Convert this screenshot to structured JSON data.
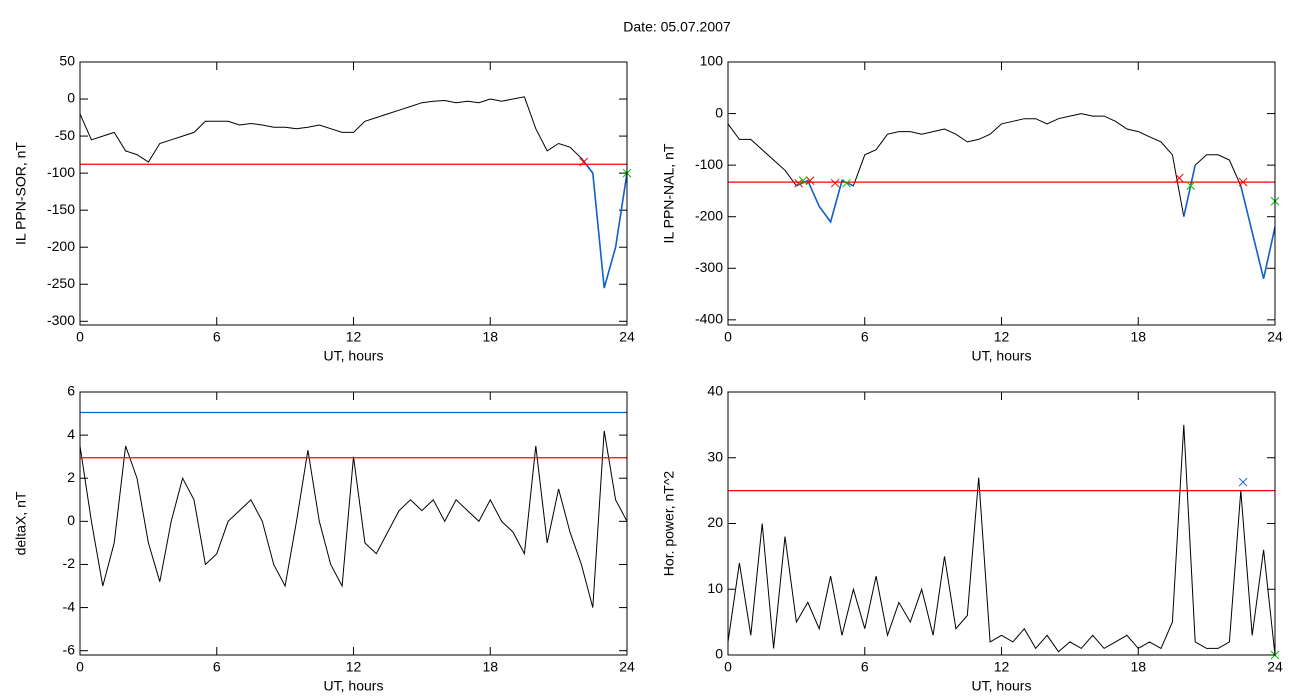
{
  "title": "Date:  05.07.2007",
  "chart_data": [
    {
      "type": "line",
      "xlabel": "UT, hours",
      "ylabel": "IL PPN-SOR, nT",
      "x": [
        0,
        0.5,
        1,
        1.5,
        2,
        2.5,
        3,
        3.5,
        4,
        4.5,
        5,
        5.5,
        6,
        6.5,
        7,
        7.5,
        8,
        8.5,
        9,
        9.5,
        10,
        10.5,
        11,
        11.5,
        12,
        12.5,
        13,
        13.5,
        14,
        14.5,
        15,
        15.5,
        16,
        16.5,
        17,
        17.5,
        18,
        18.5,
        19,
        19.5,
        20,
        20.5,
        21,
        21.5,
        22,
        22.5,
        23,
        23.5,
        24
      ],
      "xlim": [
        0,
        24
      ],
      "xticks": [
        0,
        6,
        12,
        18,
        24
      ],
      "ylim": [
        -305,
        50
      ],
      "yticks": [
        -300,
        -250,
        -200,
        -150,
        -100,
        -50,
        0,
        50
      ],
      "series": [
        {
          "color": "#000000",
          "values": [
            -20,
            -55,
            -50,
            -45,
            -70,
            -75,
            -85,
            -60,
            -55,
            -50,
            -45,
            -30,
            -30,
            -30,
            -35,
            -33,
            -35,
            -38,
            -38,
            -40,
            -38,
            -35,
            -40,
            -45,
            -45,
            -30,
            -25,
            -20,
            -15,
            -10,
            -5,
            -3,
            -2,
            -5,
            -3,
            -5,
            0,
            -3,
            0,
            3,
            -40,
            -70,
            -60,
            -65,
            -80,
            -100,
            -255,
            -200,
            -100
          ]
        },
        {
          "color": "#1060d0",
          "values": [
            null,
            null,
            null,
            null,
            null,
            null,
            null,
            null,
            null,
            null,
            null,
            null,
            null,
            null,
            null,
            null,
            null,
            null,
            null,
            null,
            null,
            null,
            null,
            null,
            null,
            null,
            null,
            null,
            null,
            null,
            null,
            null,
            null,
            null,
            null,
            null,
            null,
            null,
            null,
            null,
            null,
            null,
            null,
            null,
            -80,
            -100,
            -255,
            -200,
            -100
          ]
        }
      ],
      "hlines": [
        {
          "value": -88,
          "color": "#ff0000"
        }
      ],
      "markers": [
        {
          "color": "#ff0000",
          "x": [
            22.1
          ],
          "values": [
            -85
          ]
        },
        {
          "color": "#00c000",
          "x": [
            24
          ],
          "values": [
            -100
          ]
        }
      ]
    },
    {
      "type": "line",
      "xlabel": "UT, hours",
      "ylabel": "IL PPN-NAL, nT",
      "x": [
        0,
        0.5,
        1,
        1.5,
        2,
        2.5,
        3,
        3.5,
        4,
        4.5,
        5,
        5.5,
        6,
        6.5,
        7,
        7.5,
        8,
        8.5,
        9,
        9.5,
        10,
        10.5,
        11,
        11.5,
        12,
        12.5,
        13,
        13.5,
        14,
        14.5,
        15,
        15.5,
        16,
        16.5,
        17,
        17.5,
        18,
        18.5,
        19,
        19.5,
        20,
        20.5,
        21,
        21.5,
        22,
        22.5,
        23,
        23.5,
        24
      ],
      "xlim": [
        0,
        24
      ],
      "xticks": [
        0,
        6,
        12,
        18,
        24
      ],
      "ylim": [
        -410,
        100
      ],
      "yticks": [
        -400,
        -300,
        -200,
        -100,
        0,
        100
      ],
      "series": [
        {
          "color": "#000000",
          "values": [
            -20,
            -50,
            -50,
            -70,
            -90,
            -110,
            -140,
            -130,
            -180,
            -210,
            -130,
            -140,
            -80,
            -70,
            -40,
            -35,
            -35,
            -40,
            -35,
            -30,
            -40,
            -55,
            -50,
            -40,
            -20,
            -15,
            -10,
            -10,
            -20,
            -10,
            -5,
            0,
            -5,
            -5,
            -15,
            -30,
            -35,
            -45,
            -55,
            -80,
            -200,
            -100,
            -80,
            -80,
            -90,
            -140,
            -230,
            -320,
            -220
          ]
        },
        {
          "color": "#1060d0",
          "values": [
            null,
            null,
            null,
            null,
            null,
            null,
            -140,
            -130,
            -180,
            -210,
            -130,
            -140,
            null,
            null,
            null,
            null,
            null,
            null,
            null,
            null,
            null,
            null,
            null,
            null,
            null,
            null,
            null,
            null,
            null,
            null,
            null,
            null,
            null,
            null,
            null,
            null,
            null,
            null,
            null,
            null,
            -200,
            -100,
            null,
            null,
            null,
            -140,
            -230,
            -320,
            -220
          ]
        }
      ],
      "hlines": [
        {
          "value": -133,
          "color": "#ff0000"
        }
      ],
      "markers": [
        {
          "color": "#ff0000",
          "x": [
            3.1,
            3.6,
            4.7,
            19.8,
            22.6
          ],
          "values": [
            -135,
            -130,
            -135,
            -125,
            -133
          ]
        },
        {
          "color": "#00c000",
          "x": [
            3.3,
            5.2,
            20.3,
            24
          ],
          "values": [
            -130,
            -135,
            -140,
            -170
          ]
        }
      ]
    },
    {
      "type": "line",
      "xlabel": "UT, hours",
      "ylabel": "deltaX, nT",
      "x": [
        0,
        0.5,
        1,
        1.5,
        2,
        2.5,
        3,
        3.5,
        4,
        4.5,
        5,
        5.5,
        6,
        6.5,
        7,
        7.5,
        8,
        8.5,
        9,
        9.5,
        10,
        10.5,
        11,
        11.5,
        12,
        12.5,
        13,
        13.5,
        14,
        14.5,
        15,
        15.5,
        16,
        16.5,
        17,
        17.5,
        18,
        18.5,
        19,
        19.5,
        20,
        20.5,
        21,
        21.5,
        22,
        22.5,
        23,
        23.5,
        24
      ],
      "xlim": [
        0,
        24
      ],
      "xticks": [
        0,
        6,
        12,
        18,
        24
      ],
      "ylim": [
        -6.2,
        6
      ],
      "yticks": [
        -6,
        -4,
        -2,
        0,
        2,
        4,
        6
      ],
      "series": [
        {
          "color": "#000000",
          "values": [
            3.5,
            0,
            -3,
            -1,
            3.5,
            2,
            -1,
            -2.8,
            0,
            2,
            1,
            -2,
            -1.5,
            0,
            0.5,
            1,
            0,
            -2,
            -3,
            0,
            3.3,
            0,
            -2,
            -3,
            3,
            -1,
            -1.5,
            -0.5,
            0.5,
            1,
            0.5,
            1,
            0,
            1,
            0.5,
            0,
            1,
            0,
            -0.5,
            -1.5,
            3.5,
            -1,
            1.5,
            -0.5,
            -2,
            -4,
            4.2,
            1,
            0
          ]
        }
      ],
      "hlines": [
        {
          "value": 5.05,
          "color": "#1060d0"
        },
        {
          "value": 2.95,
          "color": "#ff0000"
        }
      ],
      "markers": []
    },
    {
      "type": "line",
      "xlabel": "UT, hours",
      "ylabel": "Hor. power, nT^2",
      "x": [
        0,
        0.5,
        1,
        1.5,
        2,
        2.5,
        3,
        3.5,
        4,
        4.5,
        5,
        5.5,
        6,
        6.5,
        7,
        7.5,
        8,
        8.5,
        9,
        9.5,
        10,
        10.5,
        11,
        11.5,
        12,
        12.5,
        13,
        13.5,
        14,
        14.5,
        15,
        15.5,
        16,
        16.5,
        17,
        17.5,
        18,
        18.5,
        19,
        19.5,
        20,
        20.5,
        21,
        21.5,
        22,
        22.5,
        23,
        23.5,
        24
      ],
      "xlim": [
        0,
        24
      ],
      "xticks": [
        0,
        6,
        12,
        18,
        24
      ],
      "ylim": [
        0,
        40
      ],
      "yticks": [
        0,
        10,
        20,
        30,
        40
      ],
      "series": [
        {
          "color": "#000000",
          "values": [
            2,
            14,
            3,
            20,
            1,
            18,
            5,
            8,
            4,
            12,
            3,
            10,
            4,
            12,
            3,
            8,
            5,
            10,
            3,
            15,
            4,
            6,
            27,
            2,
            3,
            2,
            4,
            1,
            3,
            0.5,
            2,
            1,
            3,
            1,
            2,
            3,
            1,
            2,
            1,
            5,
            35,
            2,
            1,
            1,
            2,
            25,
            3,
            16,
            0
          ]
        }
      ],
      "hlines": [
        {
          "value": 25,
          "color": "#ff0000"
        }
      ],
      "markers": [
        {
          "color": "#1060d0",
          "x": [
            22.6
          ],
          "values": [
            26.3
          ]
        },
        {
          "color": "#00c000",
          "x": [
            24
          ],
          "values": [
            0
          ]
        }
      ]
    }
  ]
}
